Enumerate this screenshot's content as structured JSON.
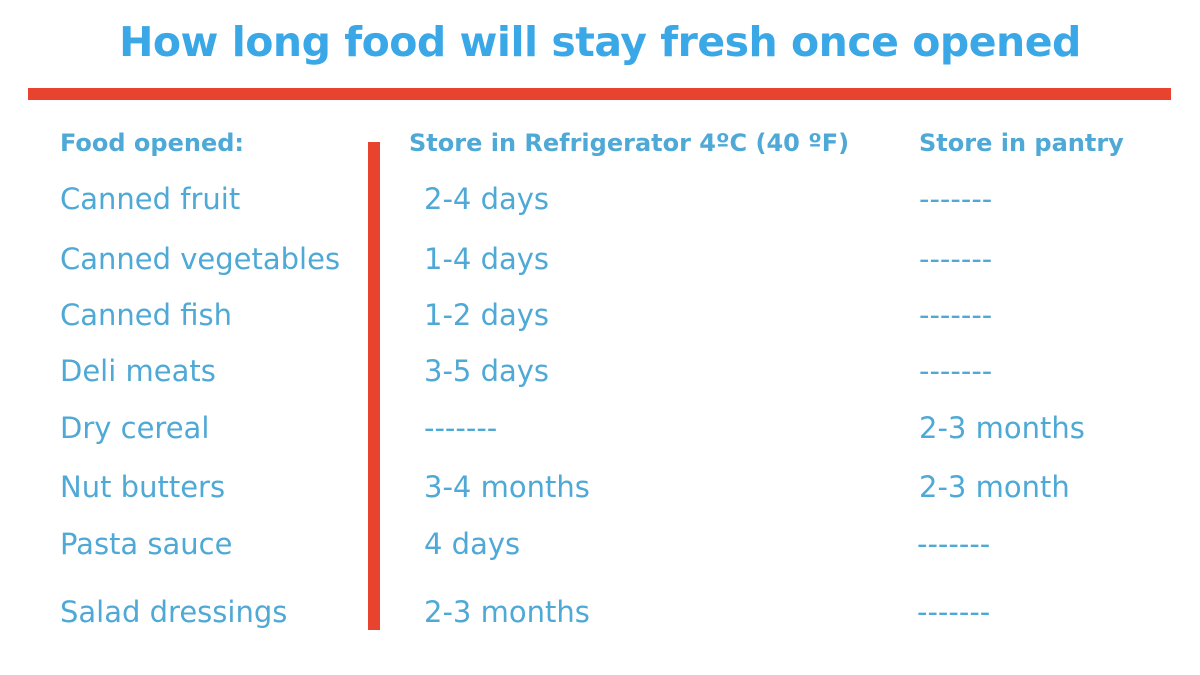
{
  "title": "How long food will stay fresh once opened",
  "headers": {
    "food": "Food opened:",
    "fridge": "Store in Refrigerator  4ºC (40 ºF)",
    "pantry": "Store in pantry"
  },
  "rows": [
    {
      "food": "Canned fruit",
      "fridge": "2-4 days",
      "pantry": "-------"
    },
    {
      "food": "Canned vegetables",
      "fridge": "1-4 days",
      "pantry": "-------"
    },
    {
      "food": "Canned fish",
      "fridge": "1-2 days",
      "pantry": "-------"
    },
    {
      "food": "Deli meats",
      "fridge": "3-5 days",
      "pantry": "-------"
    },
    {
      "food": "Dry cereal",
      "fridge": "-------",
      "pantry": "2-3 months"
    },
    {
      "food": "Nut butters",
      "fridge": "3-4 months",
      "pantry": "2-3 month"
    },
    {
      "food": "Pasta sauce",
      "fridge": "4 days",
      "pantry": "-------"
    },
    {
      "food": "Salad dressings",
      "fridge": "2-3 months",
      "pantry": "-------"
    }
  ],
  "colors": {
    "title": "#3aa7e6",
    "text": "#4fa9d6",
    "accent": "#e8432e"
  }
}
